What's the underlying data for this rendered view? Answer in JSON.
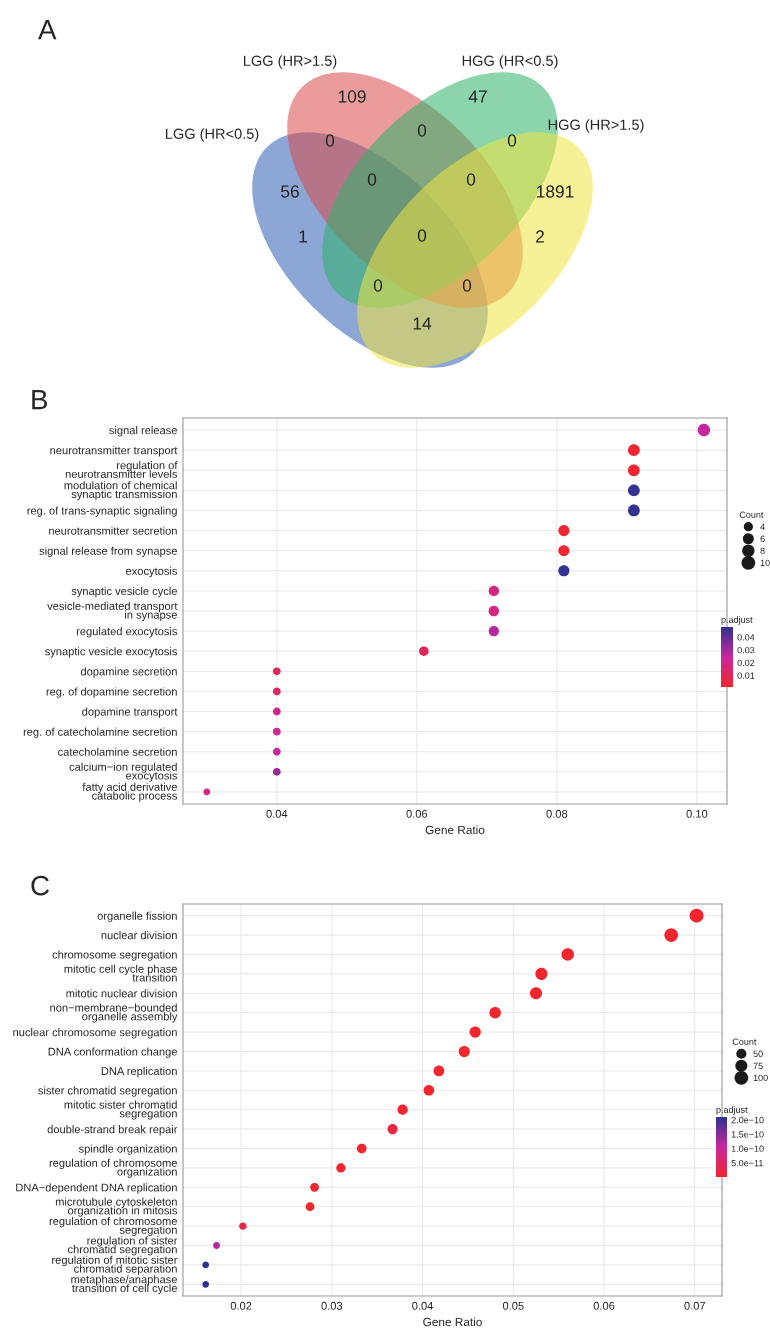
{
  "chart_data": [
    {
      "type": "other",
      "title": "A",
      "annotations": [
        "LGG (HR<0.5)",
        "LGG (HR>1.5)",
        "HGG (HR<0.5)",
        "HGG (HR>1.5)",
        "56",
        "109",
        "47",
        "1891",
        "0",
        "0",
        "0",
        "0",
        "0",
        "1",
        "2",
        "0",
        "0",
        "0",
        "14"
      ]
    },
    {
      "type": "bubble",
      "title": "B",
      "orientation": "horizontal",
      "xlabel": "Gene Ratio",
      "legend_title": "Count",
      "clabel": "p.adjust",
      "categories": [
        "signal release",
        "neurotransmitter transport",
        "regulation of\nneurotransmitter levels",
        "modulation of chemical\nsynaptic transmission",
        "reg. of trans-synaptic signaling",
        "neurotransmitter secretion",
        "signal release from synapse",
        "exocytosis",
        "synaptic vesicle cycle",
        "vesicle-mediated transport\nin synapse",
        "regulated exocytosis",
        "synaptic vesicle exocytosis",
        "dopamine secretion",
        "reg. of dopamine secretion",
        "dopamine transport",
        "reg. of catecholamine secretion",
        "catecholamine secretion",
        "calcium−ion regulated\nexocytosis",
        "fatty acid derivative\ncatabolic process"
      ],
      "values": [
        0.101,
        0.091,
        0.091,
        0.091,
        0.091,
        0.081,
        0.081,
        0.081,
        0.071,
        0.071,
        0.071,
        0.061,
        0.04,
        0.04,
        0.04,
        0.04,
        0.04,
        0.04,
        0.03
      ],
      "sizes": [
        10,
        9,
        9,
        9,
        9,
        8,
        8,
        8,
        7,
        7,
        7,
        6,
        4,
        4,
        4,
        4,
        4,
        4,
        3
      ],
      "size_legend": [
        4,
        6,
        8,
        10
      ],
      "cvalues": [
        0.025,
        0.002,
        0.002,
        0.047,
        0.047,
        0.002,
        0.002,
        0.047,
        0.018,
        0.019,
        0.027,
        0.01,
        0.01,
        0.012,
        0.02,
        0.022,
        0.024,
        0.032,
        0.018
      ],
      "clim": [
        0.001,
        0.048
      ],
      "cticks": [
        0.01,
        0.02,
        0.03,
        0.04
      ],
      "xlim": [
        0.0266,
        0.1043
      ],
      "xticks": [
        0.04,
        0.06,
        0.08,
        {
          "value": 0.1,
          "label": "0.10"
        }
      ],
      "grid": true
    },
    {
      "type": "bubble",
      "title": "C",
      "orientation": "horizontal",
      "xlabel": "Gene Ratio",
      "legend_title": "Count",
      "clabel": "p.adjust",
      "categories": [
        "organelle fission",
        "nuclear division",
        "chromosome segregation",
        "mitotic cell cycle phase\ntransition",
        "mitotic nuclear division",
        "non−membrane−bounded\norganelle assembly",
        "nuclear chromosome segregation",
        "DNA conformation change",
        "DNA replication",
        "sister chromatid segregation",
        "mitotic sister chromatid\nsegregation",
        "double-strand break repair",
        "spindle organization",
        "regulation of chromosome\norganization",
        "DNA−dependent DNA replication",
        "microtubule cytoskeleton\norganization in mitosis",
        "regulation of chromosome\nsegregation",
        "regulation of sister\nchromatid segregation",
        "regulation of mitotic sister\nchromatid separation",
        "metaphase/anaphase\ntransition of cell cycle"
      ],
      "values": [
        0.0702,
        0.0674,
        0.056,
        0.0531,
        0.0525,
        0.048,
        0.0458,
        0.0446,
        0.0418,
        0.0407,
        0.0378,
        0.0367,
        0.0333,
        0.031,
        0.0281,
        0.0276,
        0.0202,
        0.0173,
        0.0161,
        0.0161
      ],
      "sizes": [
        126,
        121,
        101,
        96,
        95,
        86,
        82,
        80,
        75,
        73,
        68,
        66,
        60,
        56,
        51,
        50,
        36,
        31,
        29,
        29
      ],
      "size_legend": [
        50,
        75,
        100
      ],
      "cvalues": [
        1e-12,
        1e-12,
        1e-12,
        1e-12,
        1e-12,
        1e-12,
        1e-12,
        1e-12,
        1e-12,
        1e-12,
        1e-12,
        2e-11,
        1e-12,
        1e-12,
        1e-12,
        1e-12,
        3e-11,
        1.2e-10,
        2.1e-10,
        2.1e-10
      ],
      "clim": [
        1e-12,
        2.1e-10
      ],
      "cticks": [
        {
          "value": 5e-11,
          "label": "5.0e−11"
        },
        {
          "value": 1e-10,
          "label": "1.0e−10"
        },
        {
          "value": 1.5e-10,
          "label": "1.5e−10"
        },
        {
          "value": 2e-10,
          "label": "2.0e−10"
        }
      ],
      "xlim": [
        0.0136,
        0.073
      ],
      "xticks": [
        0.02,
        0.03,
        0.04,
        0.05,
        0.06,
        0.07
      ],
      "grid": true
    }
  ]
}
